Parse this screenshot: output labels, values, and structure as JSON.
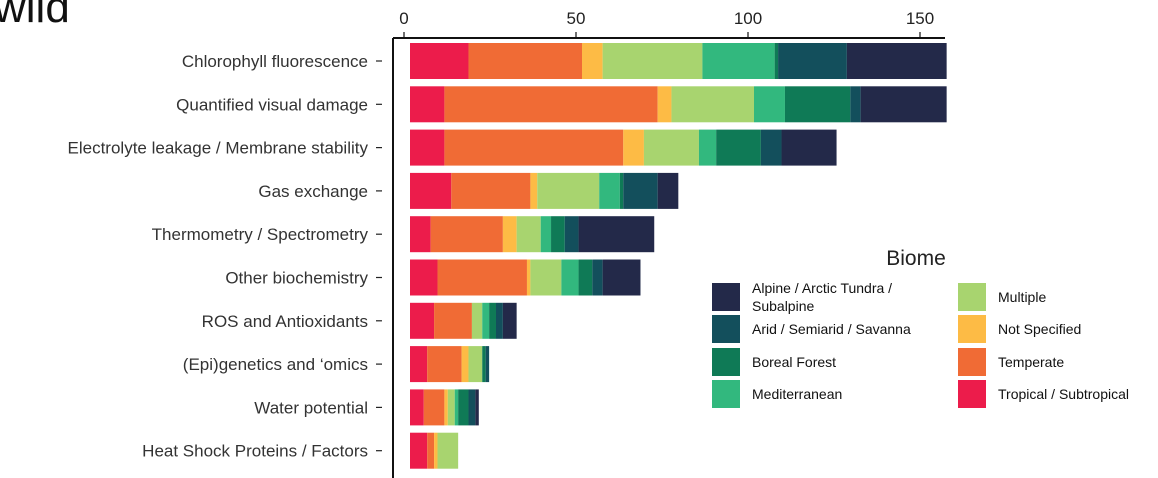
{
  "title_fragment": "wild",
  "chart_data": {
    "type": "bar",
    "orientation": "horizontal",
    "stacked": true,
    "xlim": [
      0,
      155
    ],
    "x_ticks": [
      0,
      50,
      100,
      150
    ],
    "x_axis_position": "top",
    "grid": false,
    "categories": [
      "Chlorophyll fluorescence",
      "Quantified visual damage",
      "Electrolyte leakage / Membrane stability",
      "Gas exchange",
      "Thermometry / Spectrometry",
      "Other biochemistry",
      "ROS and Antioxidants",
      "(Epi)genetics and ‘omics",
      "Water potential",
      "Heat Shock Proteins / Factors"
    ],
    "series": [
      {
        "name": "Tropical / Subtropical",
        "color": "#EC1C4B",
        "values": [
          17,
          10,
          10,
          12,
          6,
          8,
          7,
          5,
          4,
          5
        ]
      },
      {
        "name": "Temperate",
        "color": "#F06B35",
        "values": [
          33,
          62,
          52,
          23,
          21,
          26,
          11,
          10,
          6,
          2
        ]
      },
      {
        "name": "Not Specified",
        "color": "#FDBB45",
        "values": [
          6,
          4,
          6,
          2,
          4,
          1,
          0,
          2,
          1,
          1
        ]
      },
      {
        "name": "Multiple",
        "color": "#A8D46F",
        "values": [
          29,
          24,
          16,
          18,
          7,
          9,
          3,
          4,
          2,
          6
        ]
      },
      {
        "name": "Mediterranean",
        "color": "#32B87E",
        "values": [
          21,
          9,
          5,
          6,
          3,
          5,
          2,
          0,
          1,
          0
        ]
      },
      {
        "name": "Boreal Forest",
        "color": "#0F7A56",
        "values": [
          1,
          19,
          13,
          1,
          4,
          4,
          2,
          1,
          3,
          0
        ]
      },
      {
        "name": "Arid / Semiarid / Savanna",
        "color": "#134F5C",
        "values": [
          20,
          3,
          6,
          10,
          4,
          3,
          2,
          1,
          2,
          0
        ]
      },
      {
        "name": "Alpine / Arctic Tundra / Subalpine",
        "color": "#232949",
        "values": [
          29,
          25,
          16,
          6,
          22,
          11,
          4,
          0,
          1,
          0
        ]
      }
    ],
    "legend": {
      "title": "Biome",
      "position": "right",
      "columns": [
        [
          "Alpine / Arctic Tundra / Subalpine",
          "Arid / Semiarid / Savanna",
          "Boreal Forest",
          "Mediterranean"
        ],
        [
          "Multiple",
          "Not Specified",
          "Temperate",
          "Tropical / Subtropical"
        ]
      ]
    }
  }
}
